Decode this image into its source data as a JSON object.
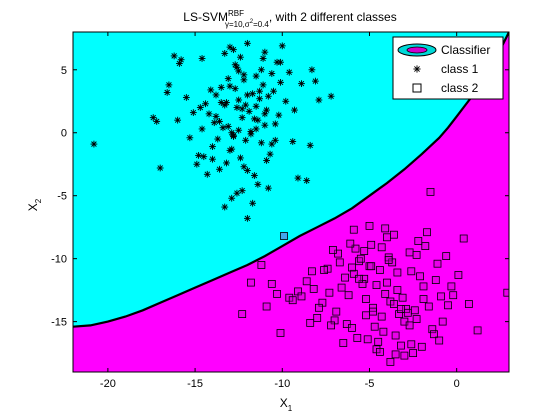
{
  "chart_data": {
    "type": "scatter",
    "title": {
      "prefix": "LS-SVM",
      "superscript": "RBF",
      "subscript_gamma": "γ=10,σ",
      "subscript_sq": "2",
      "subscript_val": "=0.4",
      "suffix": ", with 2 different classes"
    },
    "xlabel": {
      "base": "X",
      "sub": "1"
    },
    "ylabel": {
      "base": "X",
      "sub": "2"
    },
    "xlim": [
      -22,
      3
    ],
    "ylim": [
      -19,
      8
    ],
    "xticks": [
      -20,
      -15,
      -10,
      -5,
      0
    ],
    "yticks": [
      -15,
      -10,
      -5,
      0,
      5
    ],
    "grid": false,
    "legend": {
      "placement": "top-right",
      "entries": [
        "Classifier",
        "class 1",
        "class 2"
      ]
    },
    "colors": {
      "region_class1": "#00ffff",
      "region_class2": "#ff00ff",
      "boundary": "#000000",
      "markers": "#000000",
      "class2_marker_face": "#c000c0",
      "legend_classifier_fill": "#d000d0",
      "legend_classifier_ring": "#00d8d8"
    },
    "boundary_curve": {
      "x": [
        -22,
        -21,
        -20,
        -19,
        -18,
        -17,
        -16,
        -15,
        -14,
        -13,
        -12,
        -11,
        -10,
        -9,
        -8,
        -7,
        -6,
        -5,
        -4,
        -3,
        -2,
        -1,
        -0.5,
        0,
        0.5,
        1,
        1.5,
        2,
        2.5,
        3
      ],
      "y": [
        -15.4,
        -15.3,
        -15.0,
        -14.6,
        -14.1,
        -13.5,
        -12.9,
        -12.3,
        -11.7,
        -11.1,
        -10.5,
        -9.8,
        -9.0,
        -8.2,
        -7.5,
        -6.8,
        -6.0,
        -5.0,
        -4.0,
        -2.9,
        -1.7,
        -0.4,
        0.4,
        1.3,
        2.2,
        3.1,
        4.1,
        5.3,
        6.6,
        8.0
      ]
    },
    "series": [
      {
        "name": "class 1",
        "marker": "asterisk",
        "x": [
          -12.3,
          -13.1,
          -11.5,
          -12.8,
          -10.9,
          -13.6,
          -12.0,
          -11.2,
          -14.2,
          -12.5,
          -11.8,
          -13.0,
          -10.4,
          -12.7,
          -11.4,
          -13.3,
          -12.1,
          -10.8,
          -14.6,
          -11.9,
          -12.4,
          -13.8,
          -11.1,
          -12.9,
          -10.6,
          -13.5,
          -11.6,
          -12.2,
          -14.0,
          -11.0,
          -12.6,
          -13.2,
          -10.2,
          -11.7,
          -12.8,
          -13.9,
          -11.3,
          -12.3,
          -10.7,
          -14.4,
          -12.0,
          -11.5,
          -13.4,
          -10.5,
          -12.9,
          -15.1,
          -9.8,
          -13.7,
          -11.2,
          -12.5,
          -14.8,
          -10.1,
          -12.2,
          -13.0,
          -11.8,
          -15.5,
          -9.4,
          -12.7,
          -14.1,
          -10.9,
          -16.0,
          -8.9,
          -13.6,
          -12.4,
          -11.0,
          -15.3,
          -9.6,
          -12.1,
          -14.5,
          -10.3,
          -16.6,
          -8.4,
          -13.1,
          -11.6,
          -12.8,
          -17.2,
          -7.9,
          -12.0,
          -14.9,
          -10.6,
          -15.8,
          -9.1,
          -13.3,
          -11.4,
          -12.6,
          -14.3,
          -10.0,
          -12.3,
          -13.5,
          -11.1,
          -20.8,
          -17.4,
          -7.2,
          -15.9,
          -8.6,
          -13.8,
          -12.9,
          -11.0,
          -14.0,
          -10.8,
          -16.2,
          -8.1,
          -12.5,
          -13.2,
          -11.7,
          -16.5,
          -9.3,
          -12.0,
          -14.6,
          -10.4,
          -17.0,
          -8.3,
          -13.0,
          -11.5,
          -12.2,
          -13.3,
          -11.3,
          -12.6,
          -10.1,
          -14.7
        ],
        "y": [
          1.2,
          0.5,
          2.1,
          -0.3,
          1.8,
          0.9,
          3.0,
          -0.8,
          1.5,
          2.6,
          0.1,
          -1.4,
          0.7,
          3.5,
          1.0,
          2.2,
          -0.6,
          2.9,
          0.3,
          1.7,
          -2.0,
          1.3,
          3.8,
          0.0,
          -0.9,
          2.4,
          1.1,
          4.2,
          -1.1,
          0.6,
          2.0,
          -2.4,
          1.4,
          3.1,
          -0.2,
          0.8,
          2.7,
          1.9,
          -1.7,
          2.3,
          -3.0,
          4.5,
          0.4,
          3.3,
          -1.3,
          1.6,
          2.5,
          -0.5,
          5.0,
          0.2,
          -1.8,
          4.0,
          -2.7,
          3.7,
          -0.1,
          2.8,
          -0.7,
          5.4,
          3.4,
          -2.2,
          1.0,
          3.9,
          -2.9,
          6.0,
          1.5,
          -0.4,
          4.8,
          2.2,
          -1.9,
          5.6,
          3.2,
          -1.0,
          4.3,
          -3.4,
          6.6,
          0.9,
          2.6,
          7.1,
          -2.5,
          4.7,
          5.8,
          -3.6,
          6.3,
          -4.1,
          5.2,
          -3.3,
          6.9,
          -4.6,
          3.6,
          5.9,
          -0.9,
          1.2,
          2.9,
          5.5,
          -3.8,
          3.0,
          -5.2,
          6.4,
          -2.1,
          -4.4,
          6.1,
          4.1,
          4.9,
          2.4,
          -5.6,
          3.8,
          1.8,
          -6.8,
          5.9,
          -0.6,
          -2.8,
          5.0,
          6.8,
          0.3,
          4.6,
          -5.9,
          3.3,
          -4.8,
          5.6,
          2.0
        ]
      },
      {
        "name": "class 2",
        "marker": "square",
        "x": [
          -4.6,
          -3.8,
          -5.3,
          -4.1,
          -2.9,
          -5.9,
          -3.4,
          -4.8,
          -6.2,
          -2.6,
          -4.3,
          -5.0,
          -3.1,
          -6.6,
          -2.3,
          -4.0,
          -5.6,
          -3.6,
          -1.9,
          -6.9,
          -4.4,
          -3.0,
          -5.2,
          -2.1,
          -7.3,
          -3.9,
          -4.7,
          -1.6,
          -6.0,
          -3.3,
          -5.4,
          -2.7,
          -7.7,
          -4.2,
          -1.2,
          -5.8,
          -3.5,
          -6.4,
          -2.4,
          -8.2,
          -4.9,
          -0.9,
          -5.1,
          -3.7,
          -7.0,
          -1.8,
          -4.5,
          -8.6,
          -2.2,
          -6.3,
          -0.5,
          -5.5,
          -3.2,
          -9.1,
          -4.0,
          -1.4,
          -6.8,
          -2.8,
          -7.4,
          -0.2,
          -4.6,
          -9.6,
          -3.6,
          -5.7,
          -1.1,
          -8.0,
          -2.5,
          -6.1,
          0.1,
          -10.1,
          -4.3,
          -3.0,
          -7.9,
          -1.7,
          -5.2,
          -10.6,
          -0.6,
          -6.5,
          -3.9,
          -8.4,
          -2.0,
          -11.2,
          -4.8,
          0.4,
          -9.4,
          -1.3,
          -5.9,
          -3.4,
          -10.3,
          -2.7,
          -7.1,
          0.7,
          -4.1,
          -11.8,
          -1.0,
          -6.7,
          -3.2,
          -8.9,
          -5.0,
          1.2,
          -12.3,
          -2.3,
          -7.6,
          -4.4,
          -0.3,
          -9.9,
          -5.6,
          -3.8,
          -6.0,
          -1.5,
          2.9,
          -10.9,
          -4.9,
          -2.6,
          -8.3,
          -0.8,
          -5.3,
          -3.5,
          -7.2,
          -1.9
        ],
        "y": [
          -12.1,
          -13.4,
          -11.6,
          -12.8,
          -14.0,
          -11.2,
          -12.5,
          -13.9,
          -12.9,
          -11.0,
          -14.6,
          -10.6,
          -13.1,
          -12.3,
          -14.8,
          -11.9,
          -10.2,
          -13.6,
          -12.2,
          -14.2,
          -10.9,
          -15.0,
          -13.2,
          -11.4,
          -12.7,
          -9.9,
          -15.4,
          -13.8,
          -10.7,
          -14.4,
          -12.0,
          -9.5,
          -13.5,
          -15.8,
          -11.7,
          -9.2,
          -16.1,
          -11.5,
          -14.1,
          -12.4,
          -8.9,
          -13.0,
          -16.4,
          -10.3,
          -14.9,
          -9.0,
          -16.6,
          -11.8,
          -8.6,
          -15.2,
          -13.7,
          -10.0,
          -16.9,
          -12.6,
          -8.3,
          -15.6,
          -9.6,
          -14.3,
          -10.8,
          -12.9,
          -17.2,
          -13.1,
          -8.1,
          -16.3,
          -10.4,
          -14.7,
          -17.5,
          -8.8,
          -11.3,
          -15.9,
          -9.1,
          -17.7,
          -13.9,
          -7.9,
          -14.5,
          -12.0,
          -9.8,
          -16.7,
          -10.1,
          -15.1,
          -17.0,
          -10.5,
          -14.2,
          -8.4,
          -13.3,
          -16.0,
          -7.7,
          -11.1,
          -12.8,
          -15.3,
          -9.3,
          -13.6,
          -7.6,
          -11.9,
          -16.5,
          -10.3,
          -14.0,
          -13.0,
          -7.4,
          -15.7,
          -14.4,
          -9.7,
          -10.9,
          -17.4,
          -12.2,
          -8.2,
          -11.6,
          -18.2,
          -15.5,
          -4.7,
          -12.7,
          -13.8,
          -10.6,
          -16.8,
          -11.0,
          -15.0,
          -9.4,
          -17.6,
          -15.3,
          -13.2
        ]
      }
    ]
  }
}
